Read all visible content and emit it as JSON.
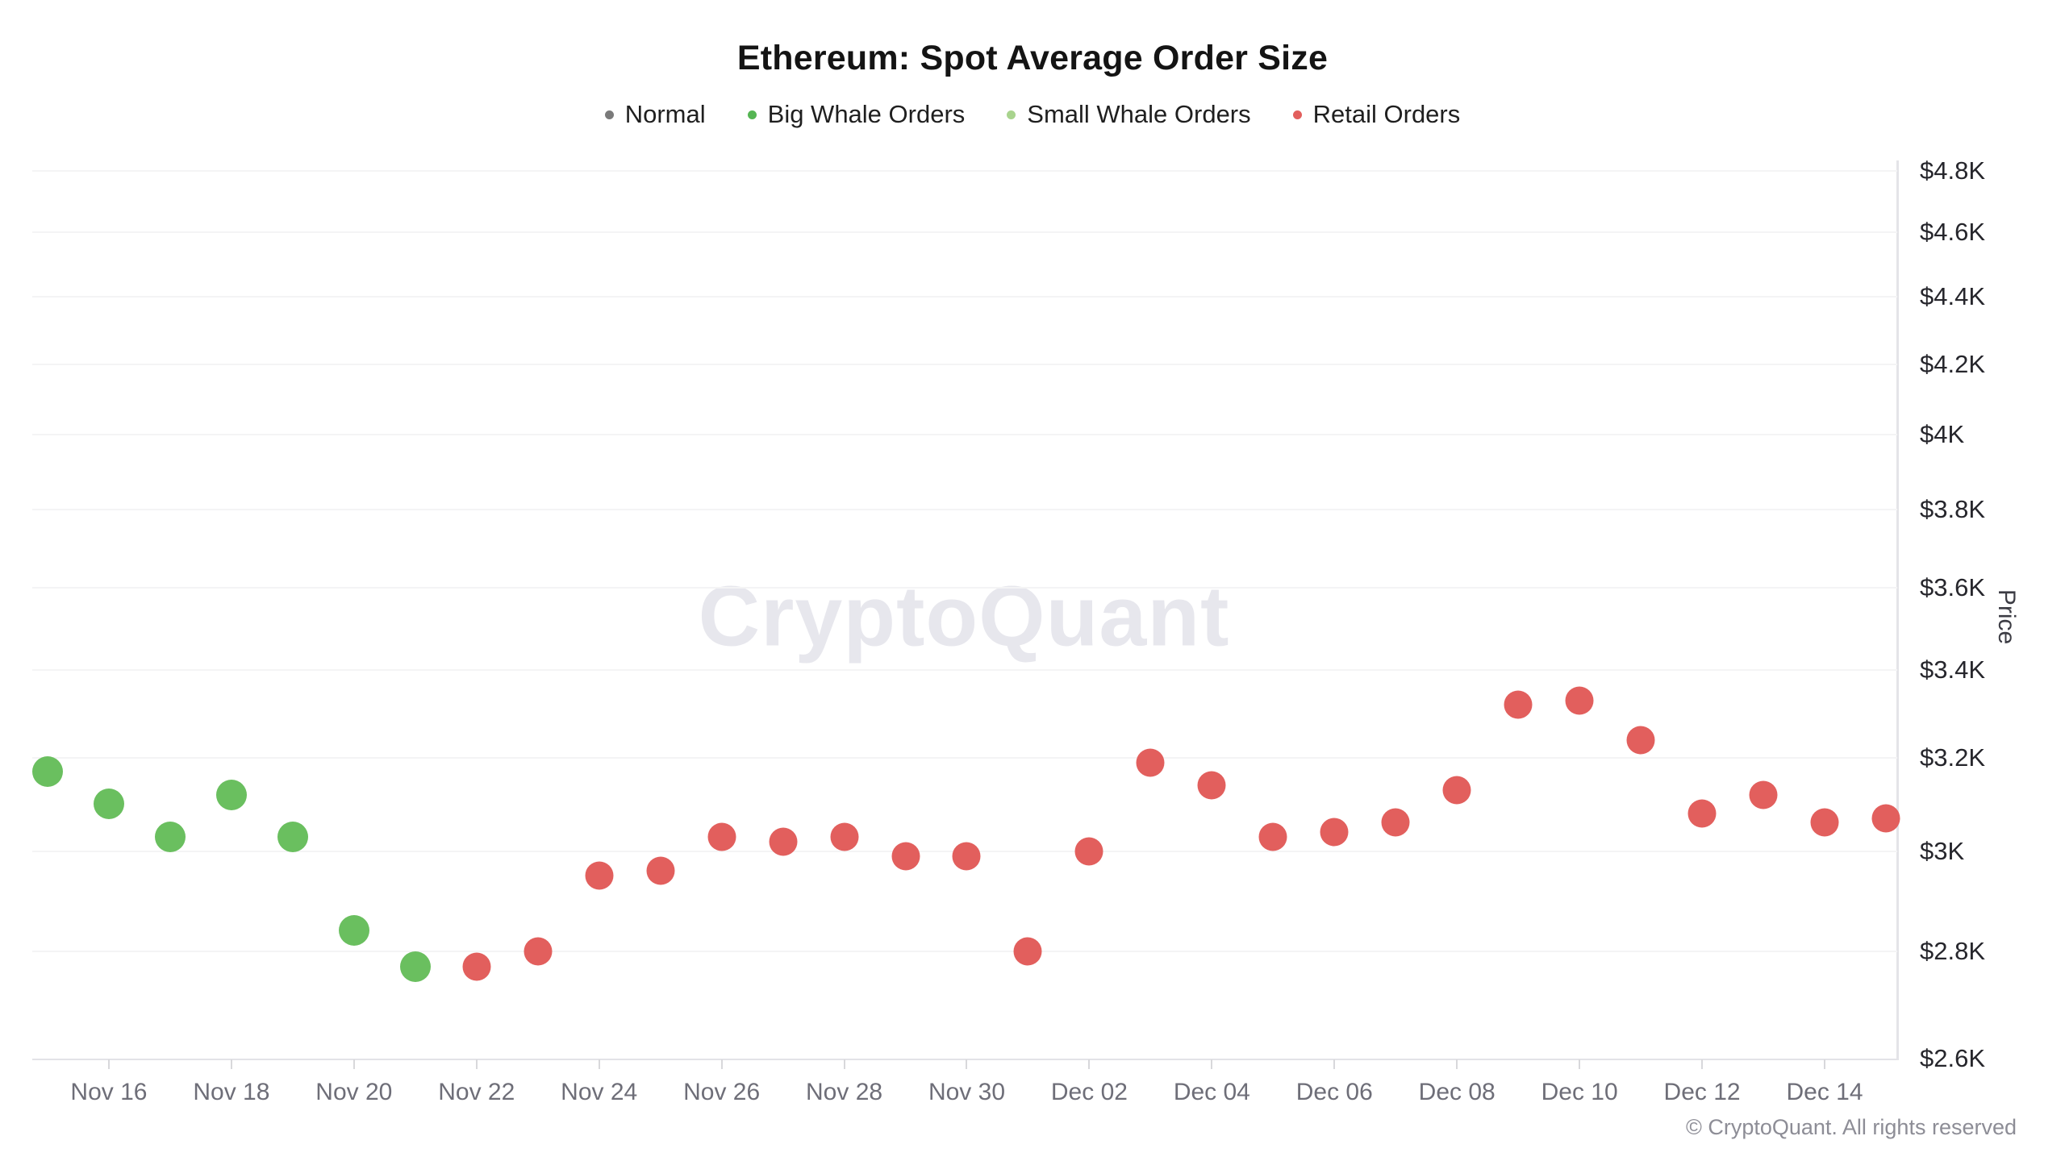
{
  "header": {
    "title": "Ethereum: Spot Average Order Size"
  },
  "legend": [
    {
      "label": "Normal",
      "color": "#7a7a7a"
    },
    {
      "label": "Big Whale Orders",
      "color": "#55b553"
    },
    {
      "label": "Small Whale Orders",
      "color": "#a9d48e"
    },
    {
      "label": "Retail Orders",
      "color": "#e25f5d"
    }
  ],
  "watermark": "CryptoQuant",
  "footer": "© CryptoQuant. All rights reserved",
  "chart_data": {
    "type": "scatter",
    "title": "Ethereum: Spot Average Order Size",
    "xlabel": "",
    "ylabel": "Price",
    "y_scale": "log",
    "ylim": [
      2600,
      4800
    ],
    "grid": "horizontal",
    "legend_position": "top-center",
    "y_ticks": [
      {
        "value": 4800,
        "label": "$4.8K"
      },
      {
        "value": 4600,
        "label": "$4.6K"
      },
      {
        "value": 4400,
        "label": "$4.4K"
      },
      {
        "value": 4200,
        "label": "$4.2K"
      },
      {
        "value": 4000,
        "label": "$4K"
      },
      {
        "value": 3800,
        "label": "$3.8K"
      },
      {
        "value": 3600,
        "label": "$3.6K"
      },
      {
        "value": 3400,
        "label": "$3.4K"
      },
      {
        "value": 3200,
        "label": "$3.2K"
      },
      {
        "value": 3000,
        "label": "$3K"
      },
      {
        "value": 2800,
        "label": "$2.8K"
      },
      {
        "value": 2600,
        "label": "$2.6K"
      }
    ],
    "x_tick_labels": [
      "Nov 16",
      "Nov 18",
      "Nov 20",
      "Nov 22",
      "Nov 24",
      "Nov 26",
      "Nov 28",
      "Nov 30",
      "Dec 02",
      "Dec 04",
      "Dec 06",
      "Dec 08",
      "Dec 10",
      "Dec 12",
      "Dec 14"
    ],
    "series_colors": {
      "normal": "#7a7a7a",
      "big_whale": "#6abf5f",
      "small_whale": "#a9d48e",
      "retail": "#e25f5d"
    },
    "points": [
      {
        "date": "Nov 15",
        "price": 3170,
        "category": "big_whale"
      },
      {
        "date": "Nov 16",
        "price": 3100,
        "category": "big_whale"
      },
      {
        "date": "Nov 17",
        "price": 3030,
        "category": "big_whale"
      },
      {
        "date": "Nov 18",
        "price": 3120,
        "category": "big_whale"
      },
      {
        "date": "Nov 19",
        "price": 3030,
        "category": "big_whale"
      },
      {
        "date": "Nov 20",
        "price": 2840,
        "category": "big_whale"
      },
      {
        "date": "Nov 21",
        "price": 2770,
        "category": "big_whale"
      },
      {
        "date": "Nov 22",
        "price": 2770,
        "category": "retail"
      },
      {
        "date": "Nov 23",
        "price": 2800,
        "category": "retail"
      },
      {
        "date": "Nov 24",
        "price": 2950,
        "category": "retail"
      },
      {
        "date": "Nov 25",
        "price": 2960,
        "category": "retail"
      },
      {
        "date": "Nov 26",
        "price": 3030,
        "category": "retail"
      },
      {
        "date": "Nov 27",
        "price": 3020,
        "category": "retail"
      },
      {
        "date": "Nov 28",
        "price": 3030,
        "category": "retail"
      },
      {
        "date": "Nov 29",
        "price": 2990,
        "category": "retail"
      },
      {
        "date": "Nov 30",
        "price": 2990,
        "category": "retail"
      },
      {
        "date": "Dec 01",
        "price": 2800,
        "category": "retail"
      },
      {
        "date": "Dec 02",
        "price": 3000,
        "category": "retail"
      },
      {
        "date": "Dec 03",
        "price": 3190,
        "category": "retail"
      },
      {
        "date": "Dec 04",
        "price": 3140,
        "category": "retail"
      },
      {
        "date": "Dec 05",
        "price": 3030,
        "category": "retail"
      },
      {
        "date": "Dec 06",
        "price": 3040,
        "category": "retail"
      },
      {
        "date": "Dec 07",
        "price": 3060,
        "category": "retail"
      },
      {
        "date": "Dec 08",
        "price": 3130,
        "category": "retail"
      },
      {
        "date": "Dec 09",
        "price": 3320,
        "category": "retail"
      },
      {
        "date": "Dec 10",
        "price": 3330,
        "category": "retail"
      },
      {
        "date": "Dec 11",
        "price": 3240,
        "category": "retail"
      },
      {
        "date": "Dec 12",
        "price": 3080,
        "category": "retail"
      },
      {
        "date": "Dec 13",
        "price": 3120,
        "category": "retail"
      },
      {
        "date": "Dec 14",
        "price": 3060,
        "category": "retail"
      },
      {
        "date": "Dec 15",
        "price": 3070,
        "category": "retail"
      }
    ]
  }
}
